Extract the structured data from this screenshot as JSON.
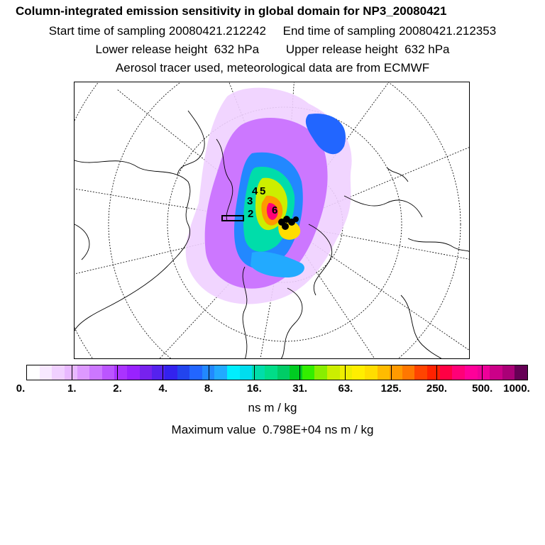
{
  "header": {
    "title": "Column-integrated emission sensitivity in global domain for NP3_20080421",
    "line2": "Start time of sampling 20080421.212242     End time of sampling 20080421.212353",
    "line3": "Lower release height  632 hPa        Upper release height  632 hPa",
    "line4": "Aerosol tracer used, meteorological data are from ECMWF"
  },
  "map": {
    "release_labels": [
      "2",
      "3",
      "4",
      "5",
      "6"
    ]
  },
  "colorbar": {
    "colors": [
      "#ffffff",
      "#f8e8ff",
      "#f0d0ff",
      "#e8b8ff",
      "#dd99ff",
      "#cc77ff",
      "#bb55ff",
      "#aa33ff",
      "#9922ff",
      "#7722ee",
      "#5522ee",
      "#3322ee",
      "#2244ee",
      "#2266ff",
      "#2288ff",
      "#22aaff",
      "#00eeff",
      "#00ddee",
      "#00ddaa",
      "#00dd88",
      "#00cc66",
      "#00cc22",
      "#33ee00",
      "#88ee00",
      "#ccee00",
      "#eeee00",
      "#ffee00",
      "#ffdd00",
      "#ffbb00",
      "#ff9900",
      "#ff7700",
      "#ff4400",
      "#ff2200",
      "#ff0044",
      "#ff0077",
      "#ff0099",
      "#ee0099",
      "#cc0088",
      "#aa0077",
      "#660055"
    ],
    "tick_labels": [
      "0.",
      "1.",
      "2.",
      "4.",
      "8.",
      "16.",
      "31.",
      "63.",
      "125.",
      "250.",
      "500.",
      "1000."
    ],
    "unit": "ns m / kg"
  },
  "footer": {
    "max_value": "Maximum value  0.798E+04 ns m / kg"
  }
}
